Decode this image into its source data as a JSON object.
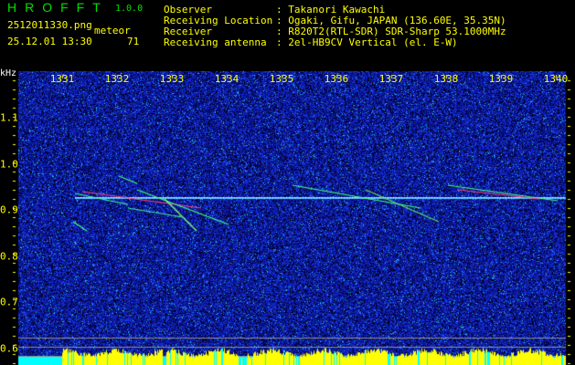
{
  "header": {
    "app_title": "HROFFT",
    "version": "1.0.0",
    "filename": "2512011330.png",
    "datetime": "25.12.01 13:30",
    "meteor_label": "meteor",
    "meteor_count": "71"
  },
  "info": [
    {
      "label": "Observer",
      "value": "Takanori Kawachi"
    },
    {
      "label": "Receiving Location",
      "value": "Ogaki, Gifu, JAPAN (136.60E, 35.35N)"
    },
    {
      "label": "Receiver",
      "value": "R820T2(RTL-SDR) SDR-Sharp 53.1000MHz"
    },
    {
      "label": "Receiving antenna",
      "value": "2el-HB9CV Vertical (el. E-W)"
    }
  ],
  "axis": {
    "y_unit": "kHz",
    "x_ticks": [
      "1331",
      "1332",
      "1333",
      "1334",
      "1335",
      "1336",
      "1337",
      "1338",
      "1339",
      "1340"
    ],
    "y_ticks": [
      "1.1",
      "1.0",
      "0.9",
      "0.8",
      "0.7",
      "0.6"
    ]
  },
  "colors": {
    "text": "#ffff00",
    "title": "#00e000",
    "background": "#000000",
    "noise": "#1020c0",
    "level_bar": "#ffff00",
    "level_base": "#00ffff"
  }
}
